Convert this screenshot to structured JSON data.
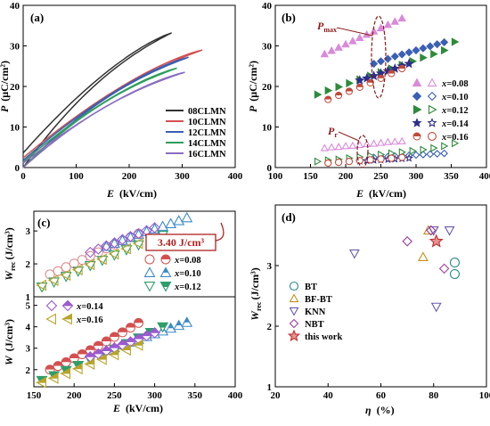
{
  "chart_data": [
    {
      "panel": "(a)",
      "type": "line",
      "xlabel_sym": "E",
      "xlabel_unit": "(kV/cm)",
      "ylabel_sym": "P",
      "ylabel_unit": "(μC/cm²)",
      "xlim": [
        0,
        400
      ],
      "ylim": [
        0,
        40
      ],
      "xticks": [
        "0",
        "100",
        "200",
        "300",
        "400"
      ],
      "yticks": [
        "0",
        "10",
        "20",
        "30",
        "40"
      ],
      "legend_position": "bottom-right",
      "series": [
        {
          "name": "08CLMN",
          "color": "#333333",
          "emax": 280,
          "pmax": 33.2,
          "pr": 3.6
        },
        {
          "name": "10CLMN",
          "color": "#d45050",
          "emax": 338,
          "pmax": 29.0,
          "pr": 2.4
        },
        {
          "name": "12CLMN",
          "color": "#3a5fb5",
          "emax": 312,
          "pmax": 27.2,
          "pr": 1.8
        },
        {
          "name": "14CLMN",
          "color": "#2e9e5e",
          "emax": 290,
          "pmax": 24.5,
          "pr": 1.4
        },
        {
          "name": "16CLMN",
          "color": "#8a6dc0",
          "emax": 305,
          "pmax": 23.5,
          "pr": 1.1
        }
      ]
    },
    {
      "panel": "(b)",
      "type": "scatter",
      "xlabel_sym": "E",
      "xlabel_unit": "(kV/cm)",
      "ylabel_sym": "P",
      "ylabel_unit": "(μC/cm²)",
      "xlim": [
        100,
        400
      ],
      "ylim": [
        0,
        40
      ],
      "xticks": [
        "100",
        "150",
        "200",
        "250",
        "300",
        "350",
        "400"
      ],
      "yticks": [
        "0",
        "10",
        "20",
        "30",
        "40"
      ],
      "annotations": {
        "pmax": "P",
        "pmax_sub": "max",
        "pr": "P",
        "pr_sub": "r"
      },
      "legend_prefix": "x",
      "series": [
        {
          "name": "=0.08",
          "color": "#d98ad9",
          "e": [
            170,
            180,
            190,
            200,
            210,
            220,
            230,
            240,
            250,
            260,
            270,
            280
          ],
          "pmax": [
            28.0,
            28.8,
            29.6,
            30.4,
            31.2,
            32.0,
            32.8,
            33.6,
            34.4,
            35.2,
            36.0,
            36.8
          ],
          "pr": [
            4.8,
            5.0,
            5.1,
            5.3,
            5.4,
            5.6,
            5.8,
            5.9,
            6.1,
            6.3,
            6.4,
            6.5
          ]
        },
        {
          "name": "=0.10",
          "color": "#3a5fb5",
          "e": [
            240,
            250,
            260,
            270,
            280,
            290,
            300,
            310,
            320,
            330,
            340
          ],
          "pmax": [
            25.6,
            26.2,
            26.8,
            27.4,
            27.9,
            28.4,
            28.9,
            29.4,
            29.9,
            30.4,
            30.9
          ],
          "pr": [
            2.5,
            2.6,
            2.7,
            2.8,
            2.9,
            3.0,
            3.1,
            3.2,
            3.3,
            3.4,
            3.5
          ]
        },
        {
          "name": "=0.12",
          "color": "#2e8b3a",
          "e": [
            160,
            175,
            190,
            205,
            220,
            235,
            250,
            265,
            280,
            295,
            310,
            325,
            340,
            355
          ],
          "pmax": [
            18.0,
            19.0,
            19.9,
            20.8,
            21.7,
            22.6,
            23.5,
            24.4,
            25.3,
            26.2,
            27.1,
            28.0,
            28.9,
            31.0
          ],
          "pr": [
            1.5,
            1.8,
            2.0,
            2.3,
            2.6,
            2.9,
            3.2,
            3.5,
            3.8,
            4.1,
            4.4,
            4.8,
            5.3,
            6.0
          ]
        },
        {
          "name": "=0.14",
          "color": "#2e2e8a",
          "e": [
            220,
            230,
            240,
            250,
            260,
            270,
            280,
            290
          ],
          "pmax": [
            21.5,
            22.0,
            22.6,
            23.2,
            23.8,
            24.4,
            25.0,
            25.6
          ],
          "pr": [
            1.6,
            1.7,
            1.8,
            1.9,
            2.0,
            2.1,
            2.2,
            2.3
          ]
        },
        {
          "name": "=0.16",
          "color": "#c04a3a",
          "e": [
            175,
            190,
            205,
            220,
            235,
            250,
            265,
            280
          ],
          "pmax": [
            16.8,
            17.8,
            18.8,
            19.8,
            20.9,
            22.0,
            23.2,
            24.4
          ],
          "pr": [
            1.1,
            1.3,
            1.5,
            1.7,
            1.9,
            2.1,
            2.3,
            2.5
          ]
        }
      ]
    },
    {
      "panel": "(c)",
      "type": "scatter",
      "xlabel_sym": "E",
      "xlabel_unit": "(kV/cm)",
      "ylabel_top_sym": "W",
      "ylabel_top_sub": "rec",
      "ylabel_top_unit": "(J/cm³)",
      "ylabel_bottom_sym": "W",
      "ylabel_bottom_unit": "(J/cm³)",
      "xlim": [
        150,
        400
      ],
      "top_ylim": [
        1,
        3.6
      ],
      "bottom_ylim": [
        1.2,
        5.4
      ],
      "xticks": [
        "150",
        "200",
        "250",
        "300",
        "350",
        "400"
      ],
      "top_yticks": [
        "1",
        "2",
        "3"
      ],
      "bottom_yticks": [
        "2",
        "3",
        "4",
        "5"
      ],
      "callout": "3.40 J/cm³",
      "legend_prefix": "x",
      "series": [
        {
          "name": "=0.08",
          "color": "#d45050",
          "e": [
            170,
            180,
            190,
            200,
            210,
            220,
            230,
            240,
            250,
            260,
            270,
            280
          ],
          "wrec": [
            1.68,
            1.78,
            1.9,
            2.01,
            2.12,
            2.24,
            2.35,
            2.47,
            2.58,
            2.7,
            2.81,
            2.92
          ],
          "w": [
            2.0,
            2.17,
            2.35,
            2.53,
            2.72,
            2.91,
            3.11,
            3.32,
            3.53,
            3.74,
            3.96,
            4.18
          ]
        },
        {
          "name": "=0.10",
          "color": "#3a8ac8",
          "e": [
            240,
            250,
            260,
            270,
            280,
            290,
            300,
            310,
            320,
            330,
            340
          ],
          "wrec": [
            2.53,
            2.62,
            2.71,
            2.8,
            2.89,
            2.98,
            3.06,
            3.14,
            3.22,
            3.31,
            3.4
          ],
          "w": [
            2.9,
            3.02,
            3.15,
            3.28,
            3.41,
            3.54,
            3.67,
            3.8,
            3.93,
            4.06,
            4.2
          ]
        },
        {
          "name": "=0.12",
          "color": "#2e9e6a",
          "e": [
            160,
            175,
            190,
            205,
            220,
            235,
            250,
            265,
            280,
            295,
            310
          ],
          "wrec": [
            1.3,
            1.45,
            1.62,
            1.78,
            1.95,
            2.11,
            2.27,
            2.43,
            2.58,
            2.73,
            2.87
          ],
          "w": [
            1.5,
            1.72,
            1.96,
            2.2,
            2.45,
            2.7,
            2.96,
            3.22,
            3.48,
            3.74,
            4.0
          ]
        },
        {
          "name": "=0.14",
          "color": "#9a5ad0",
          "e": [
            220,
            230,
            240,
            250,
            260,
            270,
            280,
            290,
            300
          ],
          "wrec": [
            2.35,
            2.45,
            2.55,
            2.64,
            2.74,
            2.83,
            2.92,
            3.01,
            3.1
          ],
          "w": [
            2.6,
            2.74,
            2.88,
            3.02,
            3.16,
            3.3,
            3.44,
            3.58,
            3.72
          ]
        },
        {
          "name": "=0.16",
          "color": "#b8a42a",
          "e": [
            160,
            175,
            190,
            205,
            220,
            235,
            250,
            265,
            280
          ],
          "wrec": [
            1.35,
            1.5,
            1.66,
            1.82,
            1.98,
            2.14,
            2.3,
            2.46,
            2.62
          ],
          "w": [
            1.4,
            1.6,
            1.82,
            2.04,
            2.26,
            2.48,
            2.7,
            2.92,
            3.14
          ]
        }
      ]
    },
    {
      "panel": "(d)",
      "type": "scatter",
      "xlabel_sym": "η",
      "xlabel_unit": "(%)",
      "ylabel_sym": "W",
      "ylabel_sub": "rec",
      "ylabel_unit": "(J/cm³)",
      "xlim": [
        20,
        100
      ],
      "ylim": [
        1,
        4
      ],
      "xticks": [
        "20",
        "40",
        "60",
        "80",
        "100"
      ],
      "yticks": [
        "1",
        "2",
        "3"
      ],
      "legend_position": "center-left",
      "series": [
        {
          "name": "BT",
          "color": "#2e8b8b",
          "marker": "circle",
          "points": [
            [
              88,
              3.05
            ],
            [
              88,
              2.86
            ]
          ]
        },
        {
          "name": "BF-BT",
          "color": "#c8901e",
          "marker": "triangle-up",
          "points": [
            [
              76,
              3.14
            ],
            [
              78,
              3.58
            ]
          ]
        },
        {
          "name": "KNN",
          "color": "#6a5ab0",
          "marker": "triangle-down",
          "points": [
            [
              50,
              3.2
            ],
            [
              80,
              3.58
            ],
            [
              86,
              3.58
            ],
            [
              81,
              2.32
            ]
          ]
        },
        {
          "name": "NBT",
          "color": "#a040a0",
          "marker": "diamond",
          "points": [
            [
              70,
              3.4
            ],
            [
              79,
              3.58
            ],
            [
              84,
              2.95
            ]
          ]
        },
        {
          "name": "this work",
          "color": "#c03030",
          "marker": "star",
          "points": [
            [
              81,
              3.4
            ]
          ]
        }
      ]
    }
  ]
}
